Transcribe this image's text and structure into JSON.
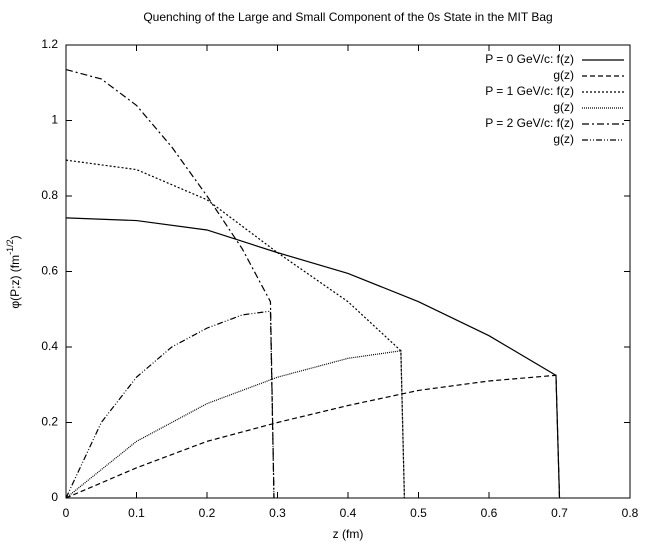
{
  "chart_data": {
    "type": "line",
    "title": "Quenching of the Large and Small Component of the 0s State in the MIT Bag",
    "xlabel": "z (fm)",
    "ylabel_parts": [
      "φ(P;z) (fm",
      "-1/2",
      ")"
    ],
    "xlim": [
      0,
      0.8
    ],
    "xticks": [
      0,
      0.1,
      0.2,
      0.3,
      0.4,
      0.5,
      0.6,
      0.7,
      0.8
    ],
    "ylim": [
      0,
      1.2
    ],
    "yticks": [
      0,
      0.2,
      0.4,
      0.6,
      0.8,
      1,
      1.2
    ],
    "legend": "top-right",
    "series": [
      {
        "name": "P = 0 GeV/c:  f(z)",
        "color": "#000000",
        "dash": "none",
        "x": [
          0,
          0.1,
          0.2,
          0.3,
          0.4,
          0.5,
          0.6,
          0.695,
          0.7
        ],
        "values": [
          0.742,
          0.735,
          0.71,
          0.65,
          0.595,
          0.52,
          0.43,
          0.325,
          0
        ]
      },
      {
        "name": "g(z)",
        "color": "#000000",
        "dash": "5,3",
        "x": [
          0,
          0.1,
          0.2,
          0.3,
          0.4,
          0.5,
          0.6,
          0.695,
          0.7
        ],
        "values": [
          0,
          0.08,
          0.15,
          0.2,
          0.245,
          0.285,
          0.31,
          0.325,
          0
        ]
      },
      {
        "name": "P = 1 GeV/c:  f(z)",
        "color": "#000000",
        "dash": "2,2",
        "x": [
          0,
          0.1,
          0.2,
          0.3,
          0.4,
          0.475,
          0.48
        ],
        "values": [
          0.895,
          0.87,
          0.79,
          0.65,
          0.52,
          0.39,
          0
        ]
      },
      {
        "name": "g(z)",
        "color": "#000000",
        "dash": "1,1",
        "x": [
          0,
          0.1,
          0.2,
          0.3,
          0.4,
          0.475,
          0.48
        ],
        "values": [
          0,
          0.15,
          0.25,
          0.32,
          0.37,
          0.39,
          0
        ]
      },
      {
        "name": "P = 2 GeV/c:  f(z)",
        "color": "#000000",
        "dash": "7,3,2,3",
        "x": [
          0,
          0.05,
          0.1,
          0.15,
          0.2,
          0.25,
          0.29,
          0.295
        ],
        "values": [
          1.135,
          1.11,
          1.04,
          0.93,
          0.8,
          0.66,
          0.52,
          0
        ]
      },
      {
        "name": "g(z)",
        "color": "#000000",
        "dash": "6,2,1,2,1,2",
        "x": [
          0,
          0.05,
          0.1,
          0.15,
          0.2,
          0.25,
          0.29,
          0.295
        ],
        "values": [
          0,
          0.2,
          0.32,
          0.4,
          0.45,
          0.485,
          0.495,
          0
        ]
      }
    ]
  }
}
